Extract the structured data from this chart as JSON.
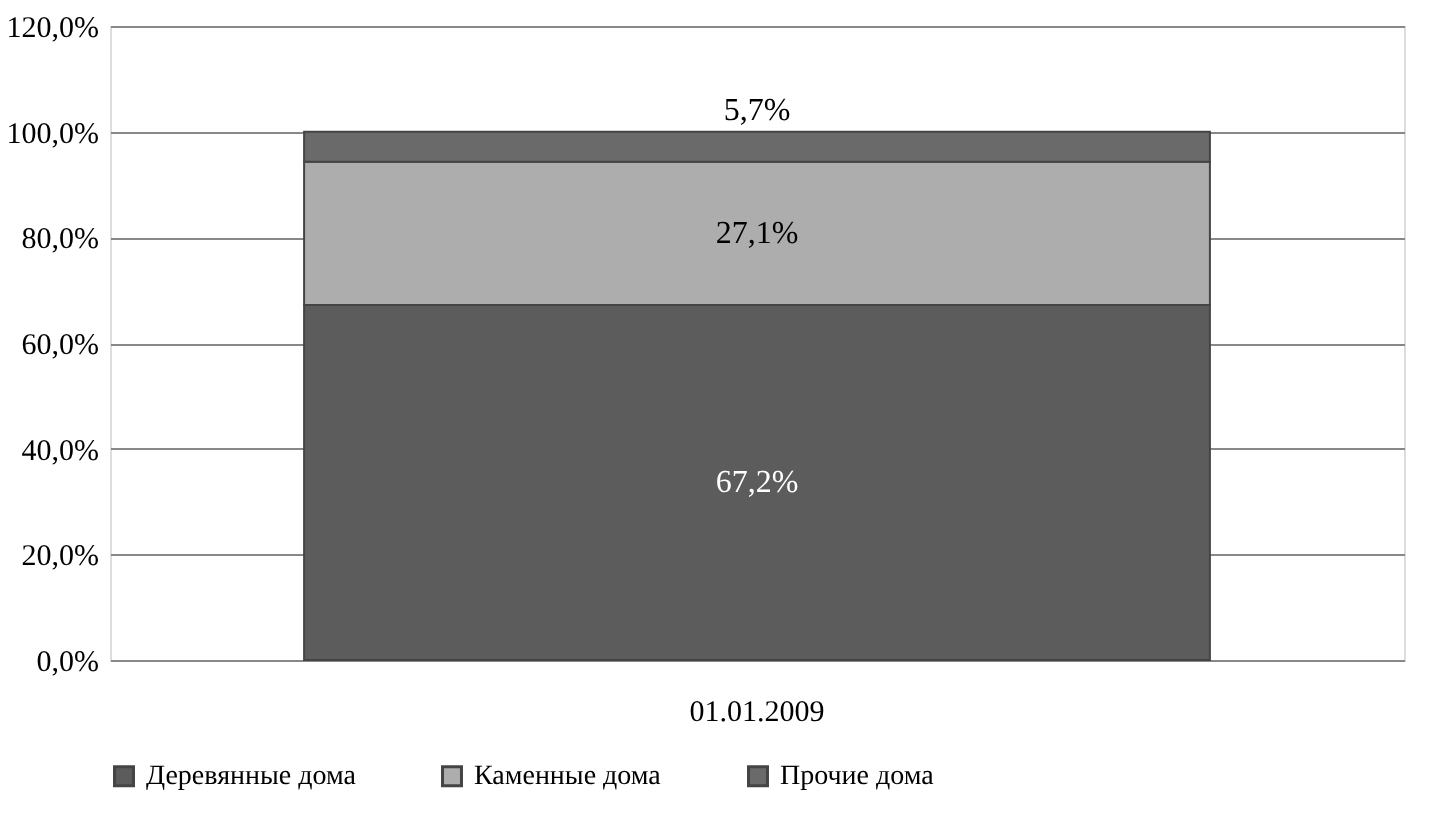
{
  "chart_data": {
    "type": "bar",
    "stacked": true,
    "categories": [
      "01.01.2009"
    ],
    "series": [
      {
        "name": "Деревянные дома",
        "color": "#5c5c5c",
        "values": [
          67.2
        ],
        "value_labels": [
          "67,2%"
        ]
      },
      {
        "name": "Каменные дома",
        "color": "#adadad",
        "values": [
          27.1
        ],
        "value_labels": [
          "27,1%"
        ]
      },
      {
        "name": "Прочие дома",
        "color": "#6a6a6a",
        "values": [
          5.7
        ],
        "value_labels": [
          "5,7%"
        ]
      }
    ],
    "ylim": [
      0,
      120
    ],
    "yticks": [
      {
        "value": 0,
        "label": "0,0%"
      },
      {
        "value": 20,
        "label": "20,0%"
      },
      {
        "value": 40,
        "label": "40,0%"
      },
      {
        "value": 60,
        "label": "60,0%"
      },
      {
        "value": 80,
        "label": "80,0%"
      },
      {
        "value": 100,
        "label": "100,0%"
      },
      {
        "value": 120,
        "label": "120,0%"
      }
    ],
    "grid": "y",
    "legend": "bottom"
  }
}
